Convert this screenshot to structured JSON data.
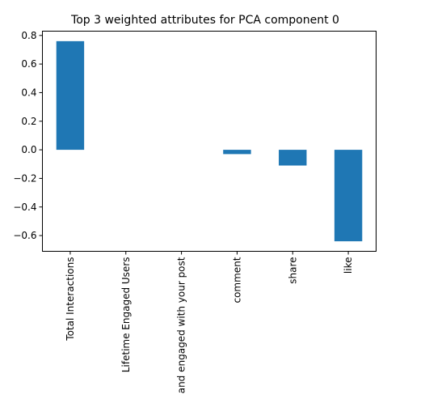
{
  "chart_data": {
    "type": "bar",
    "title": "Top 3 weighted attributes for PCA component 0",
    "xlabel": "",
    "ylabel": "",
    "categories": [
      "Total Interactions",
      "Lifetime Engaged Users",
      "and engaged with your post",
      "comment",
      "share",
      "like"
    ],
    "values": [
      0.76,
      0.0,
      0.0,
      -0.03,
      -0.11,
      -0.64
    ],
    "ylim": [
      -0.71,
      0.83
    ],
    "yticks": [
      -0.6,
      -0.4,
      -0.2,
      0.0,
      0.2,
      0.4,
      0.6,
      0.8
    ],
    "ytick_labels": [
      "−0.6",
      "−0.4",
      "−0.2",
      "0.0",
      "0.2",
      "0.4",
      "0.6",
      "0.8"
    ],
    "bar_color": "#1f77b4",
    "grid": false,
    "legend": "none"
  }
}
